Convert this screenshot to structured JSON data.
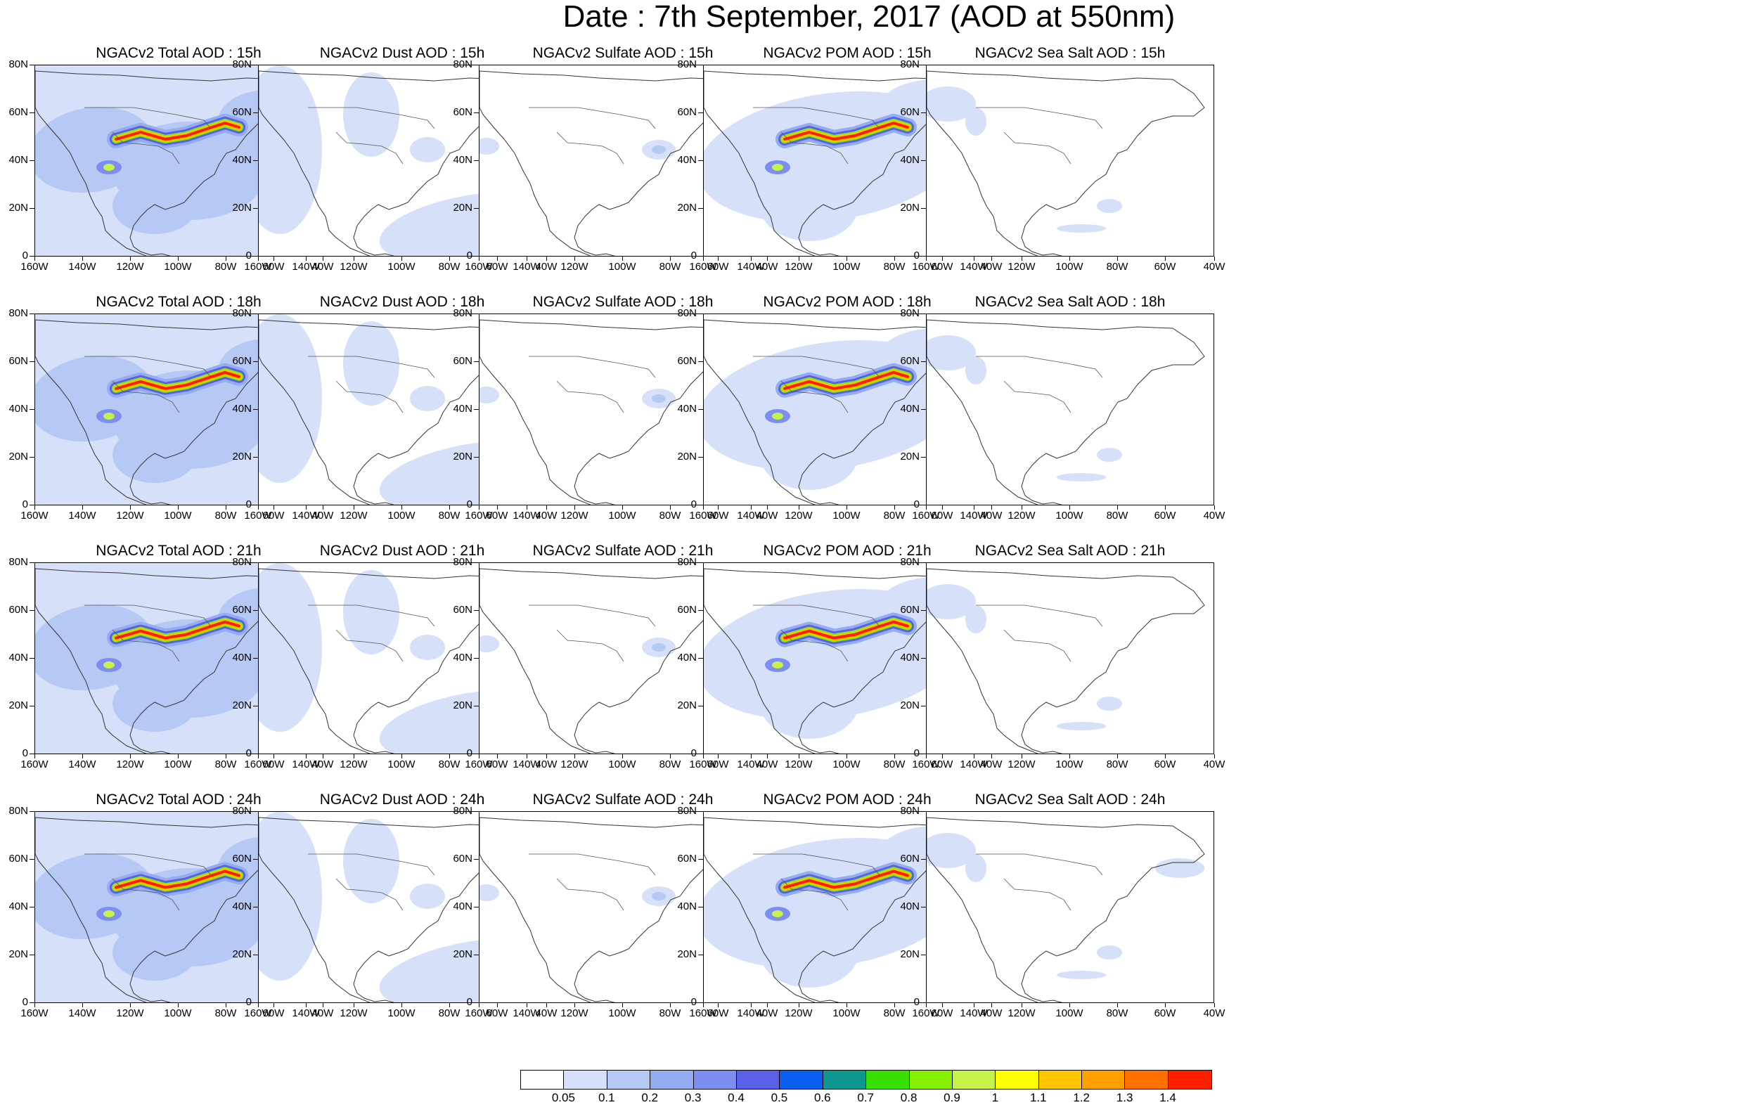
{
  "title": "Date : 7th September, 2017 (AOD at 550nm)",
  "rows": [
    "15h",
    "18h",
    "21h",
    "24h"
  ],
  "panels": [
    [
      {
        "title": "NGACv2 Total AOD : 15h",
        "species": "total"
      },
      {
        "title": "NGACv2 Dust AOD : 15h",
        "species": "dust"
      },
      {
        "title": "NGACv2 Sulfate AOD : 15h",
        "species": "sulfate"
      },
      {
        "title": "NGACv2 POM AOD : 15h",
        "species": "pom"
      },
      {
        "title": "NGACv2 Sea Salt AOD : 15h",
        "species": "seasalt"
      }
    ],
    [
      {
        "title": "NGACv2 Total AOD : 18h",
        "species": "total"
      },
      {
        "title": "NGACv2 Dust AOD : 18h",
        "species": "dust"
      },
      {
        "title": "NGACv2 Sulfate AOD : 18h",
        "species": "sulfate"
      },
      {
        "title": "NGACv2 POM AOD : 18h",
        "species": "pom"
      },
      {
        "title": "NGACv2 Sea Salt AOD : 18h",
        "species": "seasalt"
      }
    ],
    [
      {
        "title": "NGACv2 Total AOD : 21h",
        "species": "total"
      },
      {
        "title": "NGACv2 Dust AOD : 21h",
        "species": "dust"
      },
      {
        "title": "NGACv2 Sulfate AOD : 21h",
        "species": "sulfate"
      },
      {
        "title": "NGACv2 POM AOD : 21h",
        "species": "pom"
      },
      {
        "title": "NGACv2 Sea Salt AOD : 21h",
        "species": "seasalt"
      }
    ],
    [
      {
        "title": "NGACv2 Total AOD : 24h",
        "species": "total"
      },
      {
        "title": "NGACv2 Dust AOD : 24h",
        "species": "dust"
      },
      {
        "title": "NGACv2 Sulfate AOD : 24h",
        "species": "sulfate"
      },
      {
        "title": "NGACv2 POM AOD : 24h",
        "species": "pom"
      },
      {
        "title": "NGACv2 Sea Salt  AOD : 24h",
        "species": "seasalt"
      }
    ]
  ],
  "lat_labels": [
    "80N",
    "60N",
    "40N",
    "20N",
    "0"
  ],
  "lon_labels": [
    "160W",
    "140W",
    "120W",
    "100W",
    "80W",
    "60W",
    "40W"
  ],
  "colorbar": {
    "labels": [
      "0.05",
      "0.1",
      "0.2",
      "0.3",
      "0.4",
      "0.5",
      "0.6",
      "0.7",
      "0.8",
      "0.9",
      "1",
      "1.1",
      "1.2",
      "1.3",
      "1.4"
    ],
    "colors": [
      "#ffffff",
      "#d6e0f8",
      "#b6c8f4",
      "#93acf2",
      "#7c8ef0",
      "#5a60e8",
      "#0a5ef0",
      "#0e9690",
      "#38e000",
      "#86f000",
      "#c6f24a",
      "#ffff00",
      "#ffc400",
      "#ffa000",
      "#ff7000",
      "#ff1e00"
    ]
  }
}
